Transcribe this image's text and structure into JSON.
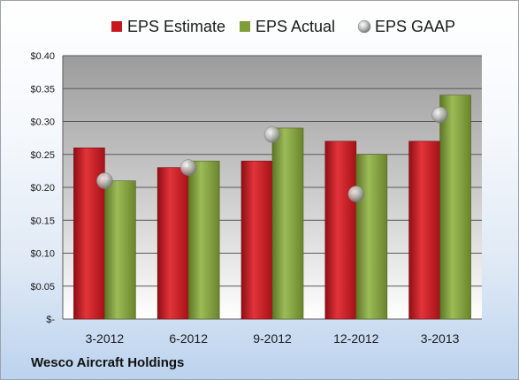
{
  "footer": {
    "company": "Wesco Aircraft Holdings"
  },
  "chart_data": {
    "type": "bar",
    "categories": [
      "3-2012",
      "6-2012",
      "9-2012",
      "12-2012",
      "3-2013"
    ],
    "series": [
      {
        "name": "EPS Estimate",
        "kind": "bar",
        "color": "#c8161d",
        "values": [
          0.26,
          0.23,
          0.24,
          0.27,
          0.27
        ]
      },
      {
        "name": "EPS Actual",
        "kind": "bar",
        "color": "#7f9c3a",
        "values": [
          0.21,
          0.24,
          0.29,
          0.25,
          0.34
        ]
      },
      {
        "name": "EPS GAAP",
        "kind": "marker",
        "color": "#a9a9a9",
        "values": [
          0.21,
          0.23,
          0.28,
          0.19,
          0.31
        ]
      }
    ],
    "ylim": [
      0,
      0.4
    ],
    "yticks": [
      0,
      0.05,
      0.1,
      0.15,
      0.2,
      0.25,
      0.3,
      0.35,
      0.4
    ],
    "ytick_labels": [
      "$-",
      "$0.05",
      "$0.10",
      "$0.15",
      "$0.20",
      "$0.25",
      "$0.30",
      "$0.35",
      "$0.40"
    ],
    "grid": true,
    "legend": "top"
  }
}
